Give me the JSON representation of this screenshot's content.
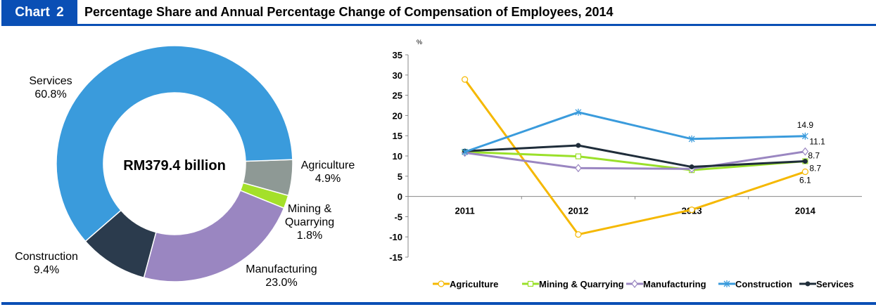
{
  "header": {
    "chart_label": "Chart  2",
    "title": "Percentage Share and Annual Percentage Change of Compensation of Employees, 2014"
  },
  "chart_data": [
    {
      "type": "pie",
      "variant": "donut",
      "center_label": "RM379.4 billion",
      "slices": [
        {
          "name": "Agriculture",
          "value": 4.9,
          "label": "4.9%",
          "color": "#8e9995"
        },
        {
          "name": "Mining & Quarrying",
          "value": 1.8,
          "label": "1.8%",
          "color": "#a4e02a"
        },
        {
          "name": "Manufacturing",
          "value": 23.0,
          "label": "23.0%",
          "color": "#9a86c1"
        },
        {
          "name": "Construction",
          "value": 9.4,
          "label": "9.4%",
          "color": "#2b3b4d"
        },
        {
          "name": "Services",
          "value": 60.8,
          "label": "60.8%",
          "color": "#3a9bdc"
        }
      ]
    },
    {
      "type": "line",
      "ylabel": "%",
      "categories": [
        "2011",
        "2012",
        "2013",
        "2014"
      ],
      "ylim": [
        -15,
        35
      ],
      "yticks": [
        35,
        30,
        25,
        20,
        15,
        10,
        5,
        0,
        -5,
        -10,
        -15
      ],
      "grid": false,
      "legend": "bottom",
      "series": [
        {
          "name": "Agriculture",
          "values": [
            28.9,
            -9.4,
            -3.3,
            6.1
          ],
          "color": "#f5b800",
          "marker": "circle",
          "end_label": "6.1"
        },
        {
          "name": "Mining & Quarrying",
          "values": [
            11.0,
            9.9,
            6.5,
            8.7
          ],
          "color": "#9ae02a",
          "marker": "square",
          "end_label": "8.7"
        },
        {
          "name": "Manufacturing",
          "values": [
            10.8,
            7.0,
            6.8,
            11.1
          ],
          "color": "#9a86c1",
          "marker": "diamond",
          "end_label": "11.1"
        },
        {
          "name": "Construction",
          "values": [
            11.0,
            20.8,
            14.2,
            14.9
          ],
          "color": "#3a9bdc",
          "marker": "star",
          "end_label": "14.9"
        },
        {
          "name": "Services",
          "values": [
            11.2,
            12.6,
            7.3,
            8.7
          ],
          "color": "#1f2d3a",
          "marker": "dot",
          "end_label": "8.7"
        }
      ]
    }
  ]
}
